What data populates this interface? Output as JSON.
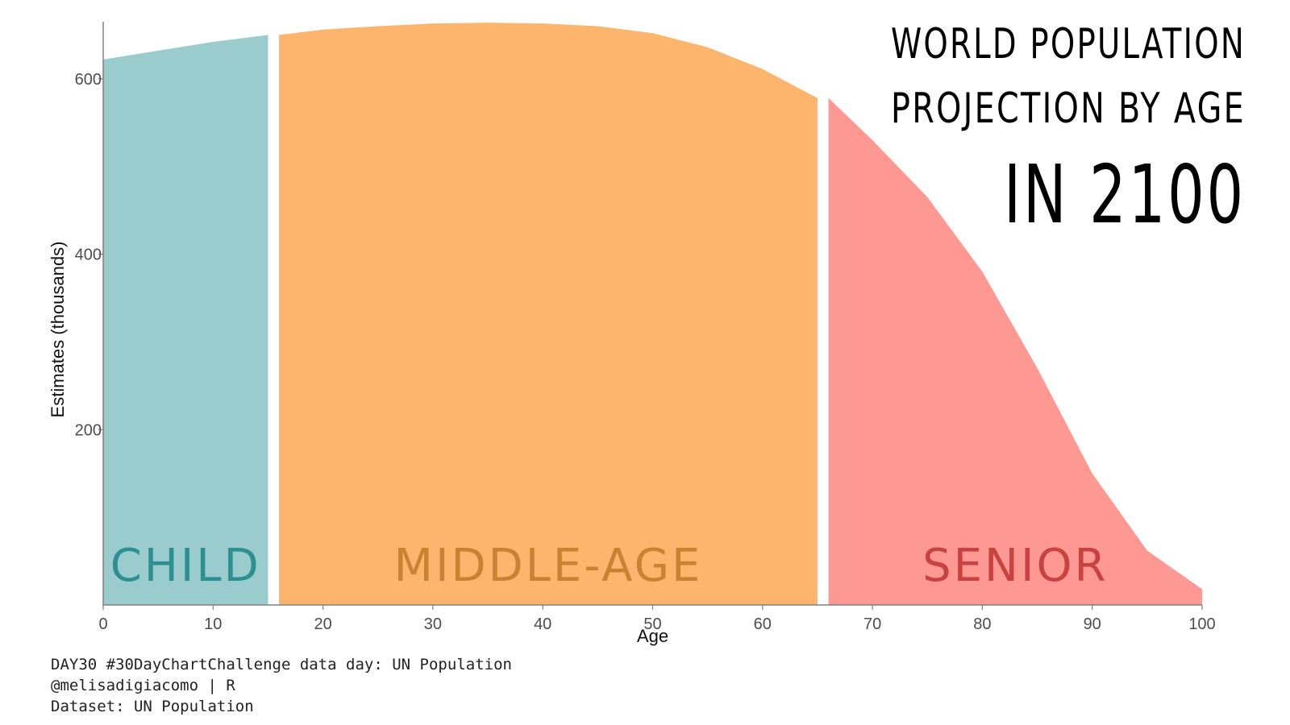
{
  "title_lines": [
    "WORLD POPULATION",
    "PROJECTION BY AGE",
    "IN 2100"
  ],
  "caption": [
    "DAY30 #30DayChartChallenge data day: UN Population",
    "@melisadigiacomo | R",
    "Dataset: UN Population"
  ],
  "chart_data": {
    "type": "area",
    "xlabel": "Age",
    "ylabel": "Estimates (thousands)",
    "xlim": [
      0,
      100
    ],
    "ylim": [
      0,
      665
    ],
    "x_ticks": [
      0,
      10,
      20,
      30,
      40,
      50,
      60,
      70,
      80,
      90,
      100
    ],
    "y_ticks": [
      200,
      400,
      600
    ],
    "grid": false,
    "series": [
      {
        "name": "CHILD",
        "color": "#9acbcd",
        "label_color": "#2e8f92",
        "x": [
          0,
          5,
          10,
          15
        ],
        "values": [
          622,
          632,
          642,
          650
        ]
      },
      {
        "name": "MIDDLE-AGE",
        "color": "#fdb56d",
        "label_color": "#c98232",
        "x": [
          16,
          20,
          25,
          30,
          35,
          40,
          45,
          50,
          55,
          60,
          65
        ],
        "values": [
          650,
          656,
          660,
          663,
          664,
          663,
          660,
          652,
          636,
          611,
          578
        ]
      },
      {
        "name": "SENIOR",
        "color": "#fd9892",
        "label_color": "#c8433f",
        "x": [
          66,
          70,
          75,
          80,
          85,
          90,
          95,
          100
        ],
        "values": [
          578,
          530,
          465,
          380,
          270,
          150,
          62,
          18
        ]
      }
    ]
  }
}
